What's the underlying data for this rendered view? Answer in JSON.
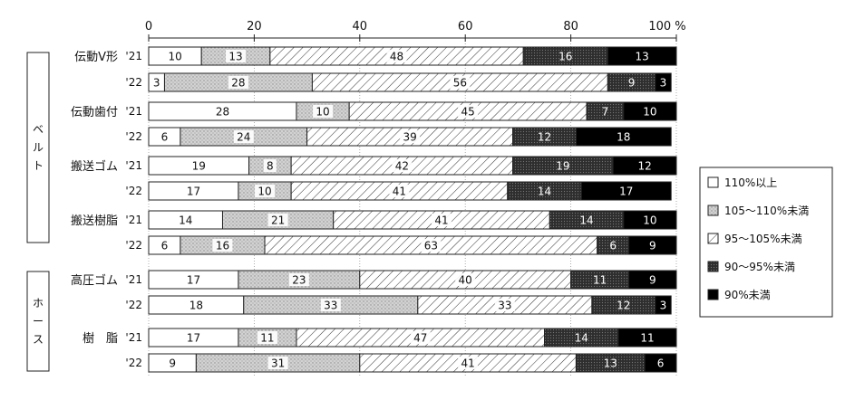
{
  "chart_data": {
    "type": "bar",
    "orientation": "horizontal",
    "stacked": true,
    "xlim": [
      0,
      100
    ],
    "xticks": [
      0,
      20,
      40,
      60,
      80,
      100
    ],
    "x_unit": "%",
    "grid": true,
    "legend_position": "right",
    "series": [
      {
        "name": "110%以上",
        "color": "#ffffff",
        "pattern": "none"
      },
      {
        "name": "105～110%未満",
        "color": "#d8d8d8",
        "pattern": "dots"
      },
      {
        "name": "95～105%未満",
        "color": "#ffffff",
        "pattern": "hatch"
      },
      {
        "name": "90～95%未満",
        "color": "#3a3a3a",
        "pattern": "dark-dots"
      },
      {
        "name": "90%未満",
        "color": "#000000",
        "pattern": "none"
      }
    ],
    "groups": [
      {
        "label": "ベルト",
        "categories": [
          "伝動V形",
          "伝動歯付",
          "搬送ゴム",
          "搬送樹脂"
        ]
      },
      {
        "label": "ホース",
        "categories": [
          "高圧ゴム",
          "樹　脂"
        ]
      }
    ],
    "rows": [
      {
        "category": "伝動V形",
        "year": "'21",
        "values": [
          10,
          13,
          48,
          16,
          13
        ]
      },
      {
        "category": "伝動V形",
        "year": "'22",
        "values": [
          3,
          28,
          56,
          9,
          3
        ]
      },
      {
        "category": "伝動歯付",
        "year": "'21",
        "values": [
          28,
          10,
          45,
          7,
          10
        ]
      },
      {
        "category": "伝動歯付",
        "year": "'22",
        "values": [
          6,
          24,
          39,
          12,
          18
        ]
      },
      {
        "category": "搬送ゴム",
        "year": "'21",
        "values": [
          19,
          8,
          42,
          19,
          12
        ]
      },
      {
        "category": "搬送ゴム",
        "year": "'22",
        "values": [
          17,
          10,
          41,
          14,
          17
        ]
      },
      {
        "category": "搬送樹脂",
        "year": "'21",
        "values": [
          14,
          21,
          41,
          14,
          10
        ]
      },
      {
        "category": "搬送樹脂",
        "year": "'22",
        "values": [
          6,
          16,
          63,
          6,
          9
        ]
      },
      {
        "category": "高圧ゴム",
        "year": "'21",
        "values": [
          17,
          23,
          40,
          11,
          9
        ]
      },
      {
        "category": "高圧ゴム",
        "year": "'22",
        "values": [
          18,
          33,
          33,
          12,
          3
        ]
      },
      {
        "category": "樹　脂",
        "year": "'21",
        "values": [
          17,
          11,
          47,
          14,
          11
        ]
      },
      {
        "category": "樹　脂",
        "year": "'22",
        "values": [
          9,
          31,
          41,
          13,
          6
        ]
      }
    ]
  }
}
